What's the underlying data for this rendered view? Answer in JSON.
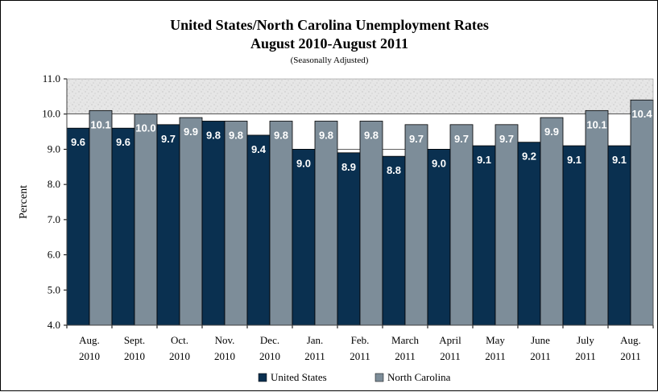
{
  "chart_data": {
    "type": "bar",
    "title": "United States/North Carolina Unemployment Rates",
    "subtitle": "August 2010-August 2011",
    "note": "(Seasonally Adjusted)",
    "ylabel": "Percent",
    "xlabel": "",
    "ylim": [
      4.0,
      11.0
    ],
    "yticks": [
      "4.0",
      "5.0",
      "6.0",
      "7.0",
      "8.0",
      "9.0",
      "10.0",
      "11.0"
    ],
    "grid": "horizontal",
    "legend_position": "bottom",
    "categories": [
      [
        "Aug.",
        "2010"
      ],
      [
        "Sept.",
        "2010"
      ],
      [
        "Oct.",
        "2010"
      ],
      [
        "Nov.",
        "2010"
      ],
      [
        "Dec.",
        "2010"
      ],
      [
        "Jan.",
        "2011"
      ],
      [
        "Feb.",
        "2011"
      ],
      [
        "March",
        "2011"
      ],
      [
        "April",
        "2011"
      ],
      [
        "May",
        "2011"
      ],
      [
        "June",
        "2011"
      ],
      [
        "July",
        "2011"
      ],
      [
        "Aug.",
        "2011"
      ]
    ],
    "series": [
      {
        "name": "United States",
        "color": "#0a3050",
        "values": [
          9.6,
          9.6,
          9.7,
          9.8,
          9.4,
          9.0,
          8.9,
          8.8,
          9.0,
          9.1,
          9.2,
          9.1,
          9.1
        ],
        "labels": [
          "9.6",
          "9.6",
          "9.7",
          "9.8",
          "9.4",
          "9.0",
          "8.9",
          "8.8",
          "9.0",
          "9.1",
          "9.2",
          "9.1",
          "9.1"
        ]
      },
      {
        "name": "North Carolina",
        "color": "#7d8d99",
        "values": [
          10.1,
          10.0,
          9.9,
          9.8,
          9.8,
          9.8,
          9.8,
          9.7,
          9.7,
          9.7,
          9.9,
          10.1,
          10.4
        ],
        "labels": [
          "10.1",
          "10.0",
          "9.9",
          "9.8",
          "9.8",
          "9.8",
          "9.8",
          "9.7",
          "9.7",
          "9.7",
          "9.9",
          "10.1",
          "10.4"
        ]
      }
    ]
  }
}
